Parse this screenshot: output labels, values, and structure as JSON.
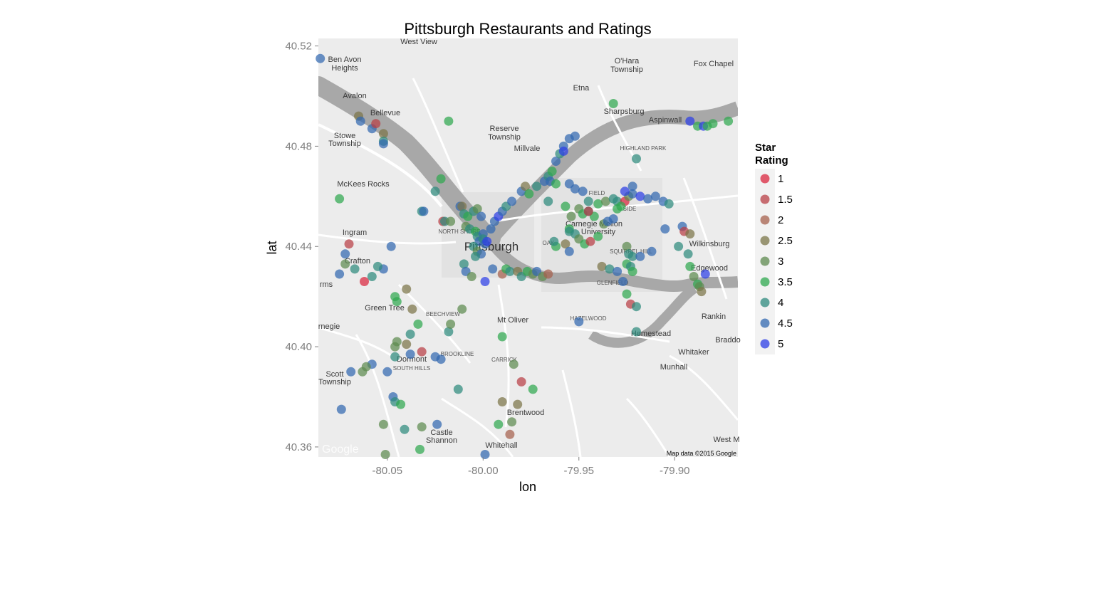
{
  "chart_data": {
    "type": "scatter",
    "title": "Pittsburgh Restaurants and Ratings",
    "xlabel": "lon",
    "ylabel": "lat",
    "xlim": [
      -80.086,
      -79.867
    ],
    "ylim": [
      40.356,
      40.523
    ],
    "x_ticks": [
      {
        "value": -80.05,
        "label": "-80.05"
      },
      {
        "value": -80.0,
        "label": "-80.00"
      },
      {
        "value": -79.95,
        "label": "-79.95"
      },
      {
        "value": -79.9,
        "label": "-79.90"
      }
    ],
    "y_ticks": [
      {
        "value": 40.52,
        "label": "40.52"
      },
      {
        "value": 40.48,
        "label": "40.48"
      },
      {
        "value": 40.44,
        "label": "40.44"
      },
      {
        "value": 40.4,
        "label": "40.40"
      },
      {
        "value": 40.36,
        "label": "40.36"
      }
    ],
    "grid": true,
    "background": "map",
    "legend": {
      "title": "Star Rating",
      "title_lines": [
        "Star",
        "Rating"
      ],
      "placement": "right",
      "levels": [
        {
          "label": "1",
          "color": "#d9263d"
        },
        {
          "label": "1.5",
          "color": "#b83f45"
        },
        {
          "label": "2",
          "color": "#a5604c"
        },
        {
          "label": "2.5",
          "color": "#7b7548"
        },
        {
          "label": "3",
          "color": "#5d8a4f"
        },
        {
          "label": "3.5",
          "color": "#2fa84f"
        },
        {
          "label": "4",
          "color": "#2e8a7d"
        },
        {
          "label": "4.5",
          "color": "#3268b0"
        },
        {
          "label": "5",
          "color": "#2c3ee6"
        }
      ]
    },
    "points": [
      [
        -80.085,
        40.515,
        "4.5"
      ],
      [
        -80.065,
        40.492,
        "2.5"
      ],
      [
        -80.064,
        40.49,
        "4.5"
      ],
      [
        -80.058,
        40.487,
        "4.5"
      ],
      [
        -80.056,
        40.489,
        "1.5"
      ],
      [
        -80.052,
        40.485,
        "2.5"
      ],
      [
        -80.052,
        40.482,
        "4"
      ],
      [
        -80.052,
        40.481,
        "4.5"
      ],
      [
        -80.018,
        40.49,
        "3.5"
      ],
      [
        -80.075,
        40.459,
        "3.5"
      ],
      [
        -80.022,
        40.467,
        "3.5"
      ],
      [
        -80.025,
        40.462,
        "4"
      ],
      [
        -80.032,
        40.454,
        "4"
      ],
      [
        -80.031,
        40.454,
        "4.5"
      ],
      [
        -80.021,
        40.45,
        "1.5"
      ],
      [
        -80.02,
        40.45,
        "4"
      ],
      [
        -80.017,
        40.45,
        "3"
      ],
      [
        -80.012,
        40.456,
        "4.5"
      ],
      [
        -80.011,
        40.456,
        "2.5"
      ],
      [
        -80.01,
        40.453,
        "4"
      ],
      [
        -80.008,
        40.452,
        "3.5"
      ],
      [
        -80.005,
        40.454,
        "4"
      ],
      [
        -80.003,
        40.455,
        "3"
      ],
      [
        -80.001,
        40.452,
        "4.5"
      ],
      [
        -80.009,
        40.448,
        "3"
      ],
      [
        -80.007,
        40.447,
        "4"
      ],
      [
        -80.004,
        40.446,
        "3.5"
      ],
      [
        -80.003,
        40.444,
        "4"
      ],
      [
        -80.002,
        40.442,
        "4.5"
      ],
      [
        -80.0,
        40.445,
        "4.5"
      ],
      [
        -80.0,
        40.443,
        "4"
      ],
      [
        -79.999,
        40.441,
        "4.5"
      ],
      [
        -79.998,
        40.442,
        "5"
      ],
      [
        -80.005,
        40.44,
        "4"
      ],
      [
        -80.003,
        40.438,
        "3"
      ],
      [
        -80.001,
        40.437,
        "4.5"
      ],
      [
        -80.004,
        40.436,
        "4"
      ],
      [
        -79.996,
        40.447,
        "4.5"
      ],
      [
        -79.994,
        40.45,
        "4.5"
      ],
      [
        -79.992,
        40.452,
        "5"
      ],
      [
        -79.99,
        40.454,
        "4.5"
      ],
      [
        -79.988,
        40.456,
        "4"
      ],
      [
        -79.985,
        40.458,
        "4.5"
      ],
      [
        -79.98,
        40.462,
        "4.5"
      ],
      [
        -79.978,
        40.464,
        "2.5"
      ],
      [
        -79.976,
        40.461,
        "3.5"
      ],
      [
        -79.972,
        40.464,
        "4"
      ],
      [
        -79.968,
        40.466,
        "4.5"
      ],
      [
        -79.966,
        40.468,
        "4"
      ],
      [
        -79.964,
        40.47,
        "3.5"
      ],
      [
        -79.962,
        40.474,
        "4.5"
      ],
      [
        -79.96,
        40.477,
        "4"
      ],
      [
        -79.958,
        40.48,
        "4.5"
      ],
      [
        -79.955,
        40.483,
        "4.5"
      ],
      [
        -79.952,
        40.484,
        "4.5"
      ],
      [
        -79.958,
        40.478,
        "5"
      ],
      [
        -79.965,
        40.466,
        "4.5"
      ],
      [
        -79.962,
        40.465,
        "3.5"
      ],
      [
        -79.955,
        40.465,
        "4.5"
      ],
      [
        -79.952,
        40.463,
        "4.5"
      ],
      [
        -79.948,
        40.462,
        "4.5"
      ],
      [
        -79.945,
        40.458,
        "4"
      ],
      [
        -79.94,
        40.457,
        "3.5"
      ],
      [
        -79.936,
        40.458,
        "3"
      ],
      [
        -79.932,
        40.459,
        "4"
      ],
      [
        -79.93,
        40.458,
        "4"
      ],
      [
        -79.926,
        40.458,
        "1"
      ],
      [
        -79.924,
        40.46,
        "3"
      ],
      [
        -79.922,
        40.461,
        "4.5"
      ],
      [
        -79.918,
        40.46,
        "5"
      ],
      [
        -79.914,
        40.459,
        "4.5"
      ],
      [
        -79.91,
        40.46,
        "4.5"
      ],
      [
        -79.906,
        40.458,
        "4.5"
      ],
      [
        -79.903,
        40.457,
        "4"
      ],
      [
        -79.95,
        40.455,
        "3"
      ],
      [
        -79.948,
        40.453,
        "3.5"
      ],
      [
        -79.945,
        40.454,
        "4"
      ],
      [
        -79.942,
        40.452,
        "3.5"
      ],
      [
        -79.937,
        40.449,
        "3"
      ],
      [
        -79.935,
        40.45,
        "4.5"
      ],
      [
        -79.932,
        40.451,
        "4.5"
      ],
      [
        -79.93,
        40.455,
        "3.5"
      ],
      [
        -79.928,
        40.456,
        "3.5"
      ],
      [
        -79.926,
        40.462,
        "5"
      ],
      [
        -79.922,
        40.464,
        "4.5"
      ],
      [
        -79.92,
        40.475,
        "4"
      ],
      [
        -79.932,
        40.497,
        "3.5"
      ],
      [
        -79.892,
        40.49,
        "5"
      ],
      [
        -79.888,
        40.488,
        "3.5"
      ],
      [
        -79.885,
        40.488,
        "5"
      ],
      [
        -79.883,
        40.488,
        "3.5"
      ],
      [
        -79.88,
        40.489,
        "3.5"
      ],
      [
        -79.872,
        40.49,
        "3.5"
      ],
      [
        -79.955,
        40.447,
        "3.5"
      ],
      [
        -79.952,
        40.445,
        "4"
      ],
      [
        -79.95,
        40.443,
        "3"
      ],
      [
        -79.947,
        40.441,
        "3.5"
      ],
      [
        -79.944,
        40.442,
        "1.5"
      ],
      [
        -79.94,
        40.444,
        "3.5"
      ],
      [
        -79.957,
        40.441,
        "2.5"
      ],
      [
        -79.955,
        40.438,
        "4.5"
      ],
      [
        -79.962,
        40.44,
        "3.5"
      ],
      [
        -79.963,
        40.442,
        "4"
      ],
      [
        -79.925,
        40.44,
        "3"
      ],
      [
        -79.924,
        40.437,
        "4"
      ],
      [
        -79.922,
        40.436,
        "4"
      ],
      [
        -79.925,
        40.433,
        "3.5"
      ],
      [
        -79.923,
        40.432,
        "4"
      ],
      [
        -79.922,
        40.43,
        "3.5"
      ],
      [
        -79.918,
        40.436,
        "4.5"
      ],
      [
        -79.912,
        40.438,
        "4.5"
      ],
      [
        -79.905,
        40.447,
        "4.5"
      ],
      [
        -79.896,
        40.448,
        "4.5"
      ],
      [
        -79.895,
        40.446,
        "1.5"
      ],
      [
        -79.892,
        40.445,
        "2.5"
      ],
      [
        -79.898,
        40.44,
        "4"
      ],
      [
        -79.893,
        40.437,
        "4"
      ],
      [
        -79.892,
        40.432,
        "3.5"
      ],
      [
        -79.89,
        40.428,
        "3"
      ],
      [
        -79.888,
        40.425,
        "3.5"
      ],
      [
        -79.887,
        40.424,
        "3"
      ],
      [
        -79.886,
        40.422,
        "2.5"
      ],
      [
        -79.884,
        40.429,
        "5"
      ],
      [
        -79.938,
        40.432,
        "2.5"
      ],
      [
        -79.934,
        40.431,
        "4"
      ],
      [
        -79.93,
        40.43,
        "4.5"
      ],
      [
        -79.927,
        40.426,
        "4.5"
      ],
      [
        -79.925,
        40.421,
        "3.5"
      ],
      [
        -79.923,
        40.417,
        "1.5"
      ],
      [
        -79.92,
        40.416,
        "4"
      ],
      [
        -79.95,
        40.41,
        "4.5"
      ],
      [
        -79.92,
        40.406,
        "4"
      ],
      [
        -79.995,
        40.431,
        "4.5"
      ],
      [
        -79.99,
        40.429,
        "2"
      ],
      [
        -79.988,
        40.431,
        "3.5"
      ],
      [
        -79.986,
        40.43,
        "4"
      ],
      [
        -79.982,
        40.43,
        "2.5"
      ],
      [
        -79.98,
        40.428,
        "4"
      ],
      [
        -79.977,
        40.43,
        "3.5"
      ],
      [
        -79.974,
        40.429,
        "3"
      ],
      [
        -79.972,
        40.43,
        "4.5"
      ],
      [
        -79.969,
        40.428,
        "3"
      ],
      [
        -79.966,
        40.429,
        "2"
      ],
      [
        -79.999,
        40.426,
        "5"
      ],
      [
        -80.01,
        40.433,
        "4"
      ],
      [
        -80.009,
        40.43,
        "4.5"
      ],
      [
        -80.006,
        40.428,
        "3"
      ],
      [
        -80.052,
        40.431,
        "4.5"
      ],
      [
        -80.055,
        40.432,
        "4"
      ],
      [
        -80.058,
        40.428,
        "4"
      ],
      [
        -80.062,
        40.426,
        "1"
      ],
      [
        -80.067,
        40.431,
        "4"
      ],
      [
        -80.072,
        40.433,
        "3"
      ],
      [
        -80.072,
        40.437,
        "4.5"
      ],
      [
        -80.07,
        40.441,
        "1.5"
      ],
      [
        -80.075,
        40.429,
        "4.5"
      ],
      [
        -80.048,
        40.44,
        "4.5"
      ],
      [
        -80.046,
        40.42,
        "3.5"
      ],
      [
        -80.045,
        40.418,
        "3.5"
      ],
      [
        -80.04,
        40.423,
        "2.5"
      ],
      [
        -80.037,
        40.415,
        "2.5"
      ],
      [
        -80.034,
        40.409,
        "3.5"
      ],
      [
        -80.038,
        40.405,
        "4"
      ],
      [
        -80.045,
        40.402,
        "3"
      ],
      [
        -80.046,
        40.4,
        "3"
      ],
      [
        -80.04,
        40.401,
        "2.5"
      ],
      [
        -80.046,
        40.396,
        "4"
      ],
      [
        -80.038,
        40.397,
        "4.5"
      ],
      [
        -80.032,
        40.398,
        "1.5"
      ],
      [
        -80.025,
        40.396,
        "4.5"
      ],
      [
        -80.022,
        40.395,
        "4.5"
      ],
      [
        -80.018,
        40.406,
        "4"
      ],
      [
        -80.017,
        40.409,
        "3"
      ],
      [
        -80.011,
        40.415,
        "3"
      ],
      [
        -80.013,
        40.383,
        "4"
      ],
      [
        -80.05,
        40.39,
        "4.5"
      ],
      [
        -80.058,
        40.393,
        "4.5"
      ],
      [
        -80.061,
        40.392,
        "3"
      ],
      [
        -80.063,
        40.39,
        "3"
      ],
      [
        -80.069,
        40.39,
        "4.5"
      ],
      [
        -80.074,
        40.375,
        "4.5"
      ],
      [
        -80.047,
        40.38,
        "4.5"
      ],
      [
        -80.046,
        40.378,
        "4"
      ],
      [
        -80.043,
        40.377,
        "3.5"
      ],
      [
        -80.052,
        40.369,
        "3"
      ],
      [
        -80.041,
        40.367,
        "4"
      ],
      [
        -80.032,
        40.368,
        "3"
      ],
      [
        -80.024,
        40.369,
        "4.5"
      ],
      [
        -80.033,
        40.359,
        "3.5"
      ],
      [
        -80.051,
        40.357,
        "3"
      ],
      [
        -79.999,
        40.357,
        "4.5"
      ],
      [
        -79.992,
        40.369,
        "3.5"
      ],
      [
        -79.985,
        40.37,
        "3"
      ],
      [
        -79.986,
        40.365,
        "2"
      ],
      [
        -79.982,
        40.377,
        "2.5"
      ],
      [
        -79.99,
        40.378,
        "2.5"
      ],
      [
        -79.98,
        40.386,
        "1.5"
      ],
      [
        -79.974,
        40.383,
        "3.5"
      ],
      [
        -79.984,
        40.393,
        "3"
      ],
      [
        -79.99,
        40.404,
        "3.5"
      ],
      [
        -79.955,
        40.446,
        "4"
      ],
      [
        -79.945,
        40.454,
        "1.5"
      ],
      [
        -79.957,
        40.456,
        "3.5"
      ],
      [
        -79.966,
        40.458,
        "4"
      ],
      [
        -79.954,
        40.452,
        "3"
      ]
    ]
  }
}
